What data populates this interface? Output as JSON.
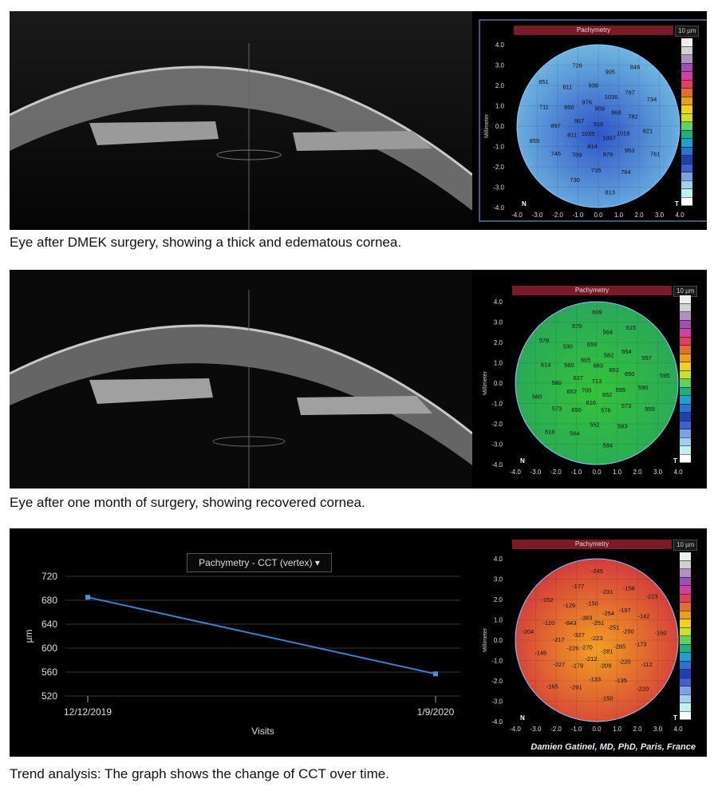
{
  "panels": [
    {
      "caption": "Eye after DMEK surgery, showing a thick and edematous cornea.",
      "map": {
        "title": "Pachymetry",
        "unit": "10 µm",
        "y_axis_label": "Millimeter",
        "axis_ticks": [
          "4.0",
          "3.0",
          "2.0",
          "1.0",
          "0.0",
          "-1.0",
          "-2.0",
          "-3.0",
          "-4.0"
        ],
        "x_ticks": [
          "-4.0",
          "-3.0",
          "-2.0",
          "-1.0",
          "0.0",
          "1.0",
          "2.0",
          "3.0",
          "4.0"
        ],
        "corner_left": "N",
        "corner_right": "T",
        "values": [
          "916",
          "1035",
          "909",
          "1097",
          "967",
          "868",
          "814",
          "976",
          "1018",
          "811",
          "1036",
          "979",
          "850",
          "782",
          "789",
          "938",
          "953",
          "897",
          "797",
          "735",
          "811",
          "821",
          "746",
          "905",
          "764",
          "711",
          "734",
          "730",
          "726",
          "761",
          "859",
          "846",
          "813",
          "851"
        ],
        "colors": {
          "fill": "#6fb6e0",
          "center": "#2f55c8"
        }
      }
    },
    {
      "caption": "Eye after one month of surgery, showing recovered cornea.",
      "map": {
        "title": "Pachymetry",
        "unit": "10 µm",
        "y_axis_label": "Millimeter",
        "axis_ticks": [
          "4.0",
          "3.0",
          "2.0",
          "1.0",
          "0.0",
          "-1.0",
          "-2.0",
          "-3.0",
          "-4.0"
        ],
        "x_ticks": [
          "-4.0",
          "-3.0",
          "-2.0",
          "-1.0",
          "0.0",
          "1.0",
          "2.0",
          "3.0",
          "4.0"
        ],
        "corner_left": "N",
        "corner_right": "T",
        "values": [
          "713",
          "705",
          "683",
          "652",
          "627",
          "652",
          "616",
          "605",
          "595",
          "652",
          "582",
          "576",
          "560",
          "650",
          "650",
          "659",
          "573",
          "580",
          "554",
          "552",
          "530",
          "590",
          "573",
          "564",
          "583",
          "614",
          "557",
          "564",
          "570",
          "555",
          "560",
          "615",
          "584",
          "578",
          "595",
          "618",
          "609"
        ],
        "colors": {
          "fill": "#2aa85a",
          "center": "#34c23a"
        }
      }
    }
  ],
  "trend": {
    "caption": "Trend analysis: The graph shows the change of CCT over time.",
    "credit": "Damien Gatinel, MD, PhD, Paris, France",
    "dropdown_label": "Pachymetry - CCT (vertex)",
    "chart_data": {
      "type": "line",
      "x": [
        "12/12/2019",
        "1/9/2020"
      ],
      "series": [
        {
          "values": [
            685,
            557
          ]
        }
      ],
      "ylabel": "µm",
      "xlabel": "Visits",
      "ylim": [
        520,
        720
      ],
      "yticks": [
        "720",
        "680",
        "640",
        "600",
        "560",
        "520"
      ],
      "grid": true
    },
    "map": {
      "title": "Pachymetry",
      "unit": "10 µm",
      "y_axis_label": "Millimeter",
      "axis_ticks": [
        "4.0",
        "3.0",
        "2.0",
        "1.0",
        "0.0",
        "-1.0",
        "-2.0",
        "-3.0",
        "-4.0"
      ],
      "x_ticks": [
        "-4.0",
        "-3.0",
        "-2.0",
        "-1.0",
        "0.0",
        "1.0",
        "2.0",
        "3.0",
        "4.0"
      ],
      "corner_left": "N",
      "corner_right": "T",
      "values": [
        "-223",
        "-270",
        "-251",
        "-281",
        "-327",
        "-251",
        "-212",
        "-383",
        "-285",
        "-226",
        "-254",
        "-209",
        "-843",
        "-250",
        "-179",
        "-150",
        "-220",
        "-217",
        "-197",
        "-133",
        "-129",
        "-173",
        "-227",
        "-231",
        "-135",
        "-120",
        "-142",
        "-291",
        "-177",
        "-112",
        "-146",
        "-156",
        "-150",
        "-152",
        "-150",
        "-165",
        "-245",
        "-220",
        "-204",
        "-223"
      ],
      "colors": {
        "fill": "#d43c3c",
        "center": "#f2a022"
      }
    }
  }
}
